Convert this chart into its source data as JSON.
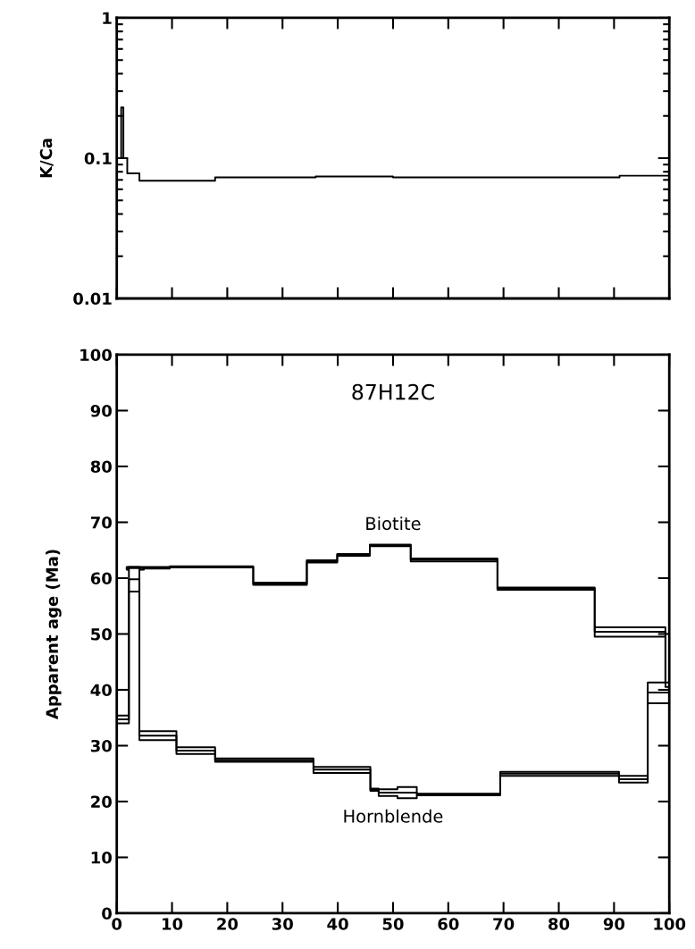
{
  "chart_data": [
    {
      "type": "step",
      "ylabel": "K/Ca",
      "log": "y",
      "xlim": [
        0,
        100
      ],
      "ylim": [
        0.01,
        1
      ],
      "xticks": [
        0,
        10,
        20,
        30,
        40,
        50,
        60,
        70,
        80,
        90,
        100
      ],
      "yticks": [
        0.01,
        0.1,
        1
      ],
      "tick_labels": "y",
      "series": [
        {
          "color": "#000000",
          "x": [
            0,
            0.8,
            1.2,
            1.9,
            4.1,
            17.8,
            36,
            50,
            91,
            100
          ],
          "values": [
            0.1,
            0.23,
            0.1,
            0.078,
            0.069,
            0.073,
            0.074,
            0.073,
            0.075,
            0.075
          ]
        }
      ]
    },
    {
      "type": "step",
      "ylabel": "Apparent age (Ma)",
      "xlim": [
        0,
        100
      ],
      "ylim": [
        0,
        100
      ],
      "xticks": [
        0,
        10,
        20,
        30,
        40,
        50,
        60,
        70,
        80,
        90,
        100
      ],
      "yticks": [
        0,
        10,
        20,
        30,
        40,
        50,
        60,
        70,
        80,
        90,
        100
      ],
      "annotations": [
        "87H12C"
      ],
      "series": [
        {
          "name": "Biotite",
          "color": "#000000",
          "x": [
            1.8,
            4.9,
            9.6,
            24.7,
            34.4,
            39.9,
            45.8,
            53.2,
            68.9,
            86.5,
            99.3,
            100
          ],
          "values": [
            61.8,
            61.9,
            62.0,
            59.0,
            63.0,
            64.2,
            65.9,
            63.3,
            58.1,
            50.4,
            40.5,
            40.5
          ],
          "lower": [
            61.5,
            61.7,
            61.9,
            58.8,
            62.8,
            64.0,
            65.7,
            63.0,
            57.9,
            49.5,
            40.0,
            40.0
          ],
          "upper": [
            62.0,
            62.0,
            62.1,
            59.2,
            63.2,
            64.3,
            66.0,
            63.5,
            58.3,
            51.2,
            41.0,
            41.0
          ]
        },
        {
          "name": "Hornblende",
          "color": "#000000",
          "x": [
            0,
            2.2,
            4.1,
            10.8,
            17.8,
            35.6,
            45.9,
            47.4,
            50.8,
            54.3,
            69.4,
            90.9,
            96.1,
            100
          ],
          "values": [
            34.7,
            59.8,
            31.8,
            29.1,
            27.4,
            25.7,
            22.1,
            21.6,
            21.6,
            21.3,
            25.0,
            24.0,
            39.5,
            39.5
          ],
          "lower": [
            34.0,
            57.6,
            31.0,
            28.5,
            27.1,
            25.1,
            21.9,
            21.0,
            20.6,
            21.1,
            24.6,
            23.4,
            37.6,
            37.6
          ],
          "upper": [
            35.4,
            62.0,
            32.6,
            29.7,
            27.7,
            26.2,
            22.3,
            22.2,
            22.6,
            21.4,
            25.3,
            24.6,
            41.3,
            41.3
          ]
        }
      ]
    }
  ]
}
